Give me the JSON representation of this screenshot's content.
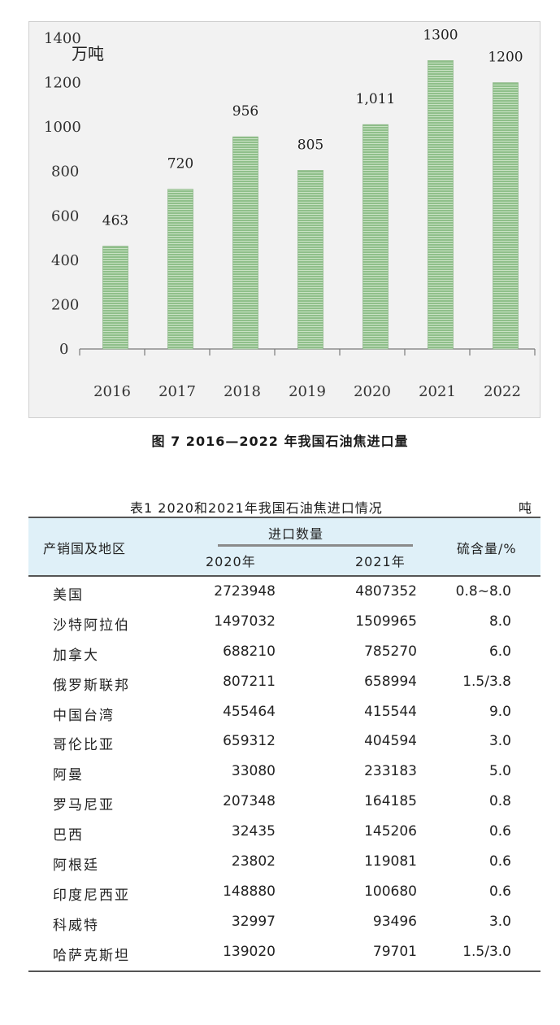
{
  "chart_data": {
    "type": "bar",
    "unit_label": "万吨",
    "categories": [
      "2016",
      "2017",
      "2018",
      "2019",
      "2020",
      "2021",
      "2022"
    ],
    "values": [
      463,
      720,
      956,
      805,
      1011,
      1300,
      1200
    ],
    "data_labels": [
      "463",
      "720",
      "956",
      "805",
      "1,011",
      "1300",
      "1200"
    ],
    "yticks": [
      "0",
      "200",
      "400",
      "600",
      "800",
      "1000",
      "1200",
      "1400"
    ],
    "ylim": [
      0,
      1400
    ],
    "grid": false,
    "bar_color": "#8fbf8a",
    "background": "#f2f2f2"
  },
  "figure_caption": "图 7  2016—2022 年我国石油焦进口量",
  "table": {
    "title": "表1  2020和2021年我国石油焦进口情况",
    "unit": "吨",
    "header": {
      "region": "产销国及地区",
      "import_volume": "进口数量",
      "y2020": "2020年",
      "y2021": "2021年",
      "sulfur": "硫含量/%"
    },
    "rows": [
      {
        "region": "美国",
        "v2020": "2723948",
        "v2021": "4807352",
        "sulfur": "0.8~8.0"
      },
      {
        "region": "沙特阿拉伯",
        "v2020": "1497032",
        "v2021": "1509965",
        "sulfur": "8.0"
      },
      {
        "region": "加拿大",
        "v2020": "688210",
        "v2021": "785270",
        "sulfur": "6.0"
      },
      {
        "region": "俄罗斯联邦",
        "v2020": "807211",
        "v2021": "658994",
        "sulfur": "1.5/3.8"
      },
      {
        "region": "中国台湾",
        "v2020": "455464",
        "v2021": "415544",
        "sulfur": "9.0"
      },
      {
        "region": "哥伦比亚",
        "v2020": "659312",
        "v2021": "404594",
        "sulfur": "3.0"
      },
      {
        "region": "阿曼",
        "v2020": "33080",
        "v2021": "233183",
        "sulfur": "5.0"
      },
      {
        "region": "罗马尼亚",
        "v2020": "207348",
        "v2021": "164185",
        "sulfur": "0.8"
      },
      {
        "region": "巴西",
        "v2020": "32435",
        "v2021": "145206",
        "sulfur": "0.6"
      },
      {
        "region": "阿根廷",
        "v2020": "23802",
        "v2021": "119081",
        "sulfur": "0.6"
      },
      {
        "region": "印度尼西亚",
        "v2020": "148880",
        "v2021": "100680",
        "sulfur": "0.6"
      },
      {
        "region": "科威特",
        "v2020": "32997",
        "v2021": "93496",
        "sulfur": "3.0"
      },
      {
        "region": "哈萨克斯坦",
        "v2020": "139020",
        "v2021": "79701",
        "sulfur": "1.5/3.0"
      }
    ]
  }
}
